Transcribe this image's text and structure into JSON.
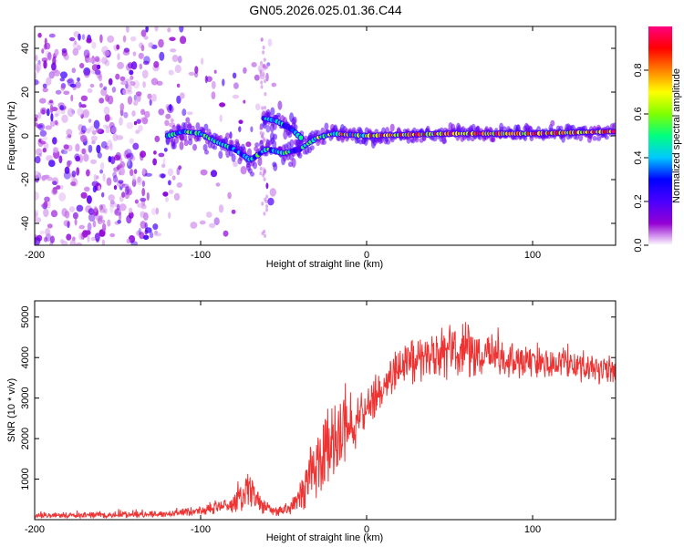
{
  "title": "GN05.2026.025.01.36.C44",
  "chart_data": [
    {
      "type": "heatmap",
      "name": "spectrogram",
      "xlabel": "Height of straight line (km)",
      "ylabel": "Frequency (Hz)",
      "xlim": [
        -200,
        150
      ],
      "ylim": [
        -50,
        50
      ],
      "xticks": [
        -200,
        -100,
        0,
        100
      ],
      "yticks": [
        -40,
        -20,
        0,
        20,
        40
      ],
      "colorbar": {
        "label": "Normalized spectral amplitude",
        "range": [
          0,
          1
        ],
        "ticks": [
          "0.0",
          "0.2",
          "0.4",
          "0.6",
          "0.8"
        ],
        "colors": [
          "#ffffff",
          "#9400d3",
          "#4b00ff",
          "#0000ff",
          "#00c8ff",
          "#00ff80",
          "#80ff00",
          "#ffff00",
          "#ff8000",
          "#ff0000",
          "#ff0080"
        ]
      },
      "ridge": [
        {
          "h": -120,
          "f": 0
        },
        {
          "h": -110,
          "f": 2
        },
        {
          "h": -100,
          "f": 1
        },
        {
          "h": -90,
          "f": -3
        },
        {
          "h": -80,
          "f": -6
        },
        {
          "h": -70,
          "f": -11
        },
        {
          "h": -60,
          "f": -6
        },
        {
          "h": -50,
          "f": -8
        },
        {
          "h": -40,
          "f": -6
        },
        {
          "h": -30,
          "f": -1
        },
        {
          "h": -20,
          "f": 1
        },
        {
          "h": 0,
          "f": 0
        },
        {
          "h": 50,
          "f": 1
        },
        {
          "h": 100,
          "f": 1
        },
        {
          "h": 150,
          "f": 2
        }
      ],
      "ridge2": [
        {
          "h": -62,
          "f": 8
        },
        {
          "h": -55,
          "f": 7
        },
        {
          "h": -45,
          "f": 3
        },
        {
          "h": -38,
          "f": -2
        }
      ]
    },
    {
      "type": "line",
      "name": "snr",
      "xlabel": "Height of straight line (km)",
      "ylabel": "SNR (10 * v/v)",
      "xlim": [
        -200,
        150
      ],
      "ylim": [
        0,
        5400
      ],
      "xticks": [
        -200,
        -100,
        0,
        100
      ],
      "yticks": [
        1000,
        2000,
        3000,
        4000,
        5000
      ],
      "color": "#ee3333",
      "envelope": [
        {
          "h": -200,
          "mean": 100,
          "noise": 80
        },
        {
          "h": -150,
          "mean": 110,
          "noise": 90
        },
        {
          "h": -120,
          "mean": 140,
          "noise": 100
        },
        {
          "h": -100,
          "mean": 230,
          "noise": 150
        },
        {
          "h": -85,
          "mean": 350,
          "noise": 250
        },
        {
          "h": -75,
          "mean": 550,
          "noise": 450
        },
        {
          "h": -70,
          "mean": 700,
          "noise": 700
        },
        {
          "h": -65,
          "mean": 400,
          "noise": 300
        },
        {
          "h": -55,
          "mean": 200,
          "noise": 150
        },
        {
          "h": -45,
          "mean": 300,
          "noise": 200
        },
        {
          "h": -38,
          "mean": 800,
          "noise": 600
        },
        {
          "h": -30,
          "mean": 1400,
          "noise": 1200
        },
        {
          "h": -20,
          "mean": 1900,
          "noise": 1200
        },
        {
          "h": -10,
          "mean": 2300,
          "noise": 800
        },
        {
          "h": 0,
          "mean": 2700,
          "noise": 600
        },
        {
          "h": 10,
          "mean": 3300,
          "noise": 600
        },
        {
          "h": 20,
          "mean": 3800,
          "noise": 700
        },
        {
          "h": 40,
          "mean": 4100,
          "noise": 800
        },
        {
          "h": 60,
          "mean": 4150,
          "noise": 800
        },
        {
          "h": 80,
          "mean": 4000,
          "noise": 600
        },
        {
          "h": 100,
          "mean": 3900,
          "noise": 500
        },
        {
          "h": 130,
          "mean": 3800,
          "noise": 450
        },
        {
          "h": 150,
          "mean": 3700,
          "noise": 400
        }
      ]
    }
  ]
}
